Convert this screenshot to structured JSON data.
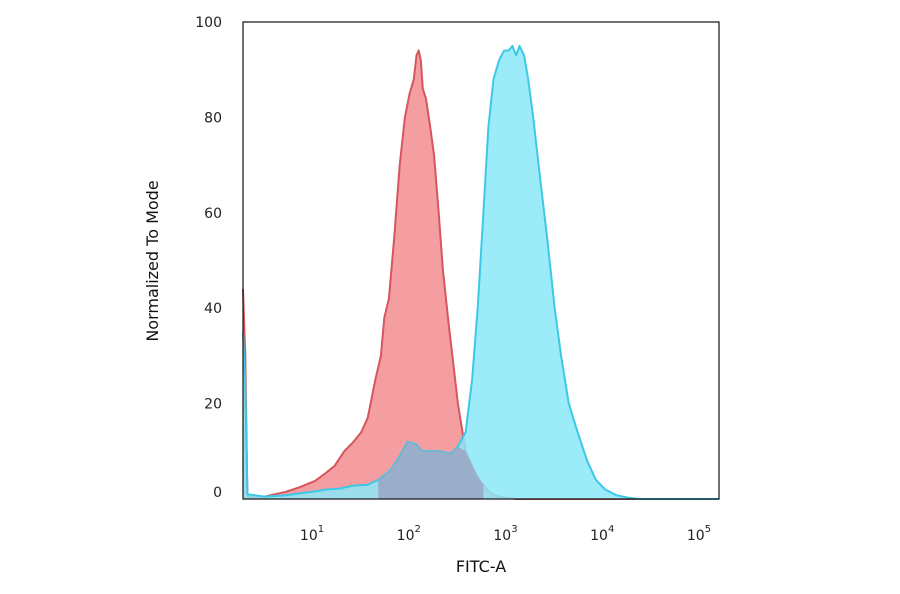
{
  "chart_data": {
    "type": "area",
    "xlabel": "FITC-A",
    "ylabel": "Normalized To Mode",
    "x_scale": "log",
    "xlim": [
      1.8,
      150000
    ],
    "ylim": [
      0,
      100
    ],
    "y_ticks": [
      0,
      20,
      40,
      60,
      80,
      100
    ],
    "x_ticks": [
      {
        "value": 10,
        "base": "10",
        "exp": "1"
      },
      {
        "value": 100,
        "base": "10",
        "exp": "2"
      },
      {
        "value": 1000,
        "base": "10",
        "exp": "3"
      },
      {
        "value": 10000,
        "base": "10",
        "exp": "4"
      },
      {
        "value": 100000,
        "base": "10",
        "exp": "5"
      }
    ],
    "grid": false,
    "legend": "none",
    "series": [
      {
        "color": "#f59ea2",
        "stroke": "#d5565c",
        "points": [
          [
            1.8,
            44
          ],
          [
            1.9,
            30
          ],
          [
            2.0,
            0.5
          ],
          [
            3,
            0.5
          ],
          [
            5,
            1.5
          ],
          [
            7,
            2.5
          ],
          [
            10,
            3.8
          ],
          [
            13,
            5.5
          ],
          [
            16,
            7
          ],
          [
            20,
            10
          ],
          [
            25,
            12
          ],
          [
            30,
            14
          ],
          [
            35,
            17
          ],
          [
            42,
            25
          ],
          [
            48,
            30
          ],
          [
            52,
            38
          ],
          [
            58,
            42
          ],
          [
            66,
            55
          ],
          [
            75,
            70
          ],
          [
            85,
            80
          ],
          [
            95,
            85
          ],
          [
            105,
            88
          ],
          [
            112,
            93
          ],
          [
            118,
            94
          ],
          [
            124,
            92
          ],
          [
            130,
            86
          ],
          [
            140,
            84
          ],
          [
            155,
            78
          ],
          [
            170,
            72
          ],
          [
            190,
            60
          ],
          [
            210,
            48
          ],
          [
            240,
            37
          ],
          [
            270,
            28
          ],
          [
            300,
            20
          ],
          [
            360,
            10
          ],
          [
            420,
            7
          ],
          [
            500,
            4
          ],
          [
            600,
            2
          ],
          [
            700,
            0.8
          ],
          [
            900,
            0.3
          ],
          [
            1200,
            0
          ],
          [
            150000,
            0
          ]
        ]
      },
      {
        "color": "#8be8f8",
        "stroke": "#3cc8e6",
        "points": [
          [
            1.8,
            35
          ],
          [
            1.9,
            24
          ],
          [
            2.0,
            1
          ],
          [
            3,
            0.5
          ],
          [
            5,
            0.8
          ],
          [
            7,
            1.2
          ],
          [
            10,
            1.6
          ],
          [
            13,
            2
          ],
          [
            18,
            2.2
          ],
          [
            25,
            2.8
          ],
          [
            35,
            3
          ],
          [
            45,
            4
          ],
          [
            60,
            6
          ],
          [
            75,
            9
          ],
          [
            90,
            12
          ],
          [
            110,
            11.5
          ],
          [
            130,
            10
          ],
          [
            160,
            10
          ],
          [
            200,
            10
          ],
          [
            250,
            9.5
          ],
          [
            300,
            11
          ],
          [
            360,
            14
          ],
          [
            420,
            25
          ],
          [
            480,
            40
          ],
          [
            550,
            60
          ],
          [
            620,
            78
          ],
          [
            700,
            88
          ],
          [
            800,
            92
          ],
          [
            900,
            94
          ],
          [
            1000,
            94
          ],
          [
            1100,
            95
          ],
          [
            1200,
            93
          ],
          [
            1300,
            95
          ],
          [
            1450,
            93
          ],
          [
            1600,
            88
          ],
          [
            1800,
            80
          ],
          [
            2100,
            68
          ],
          [
            2500,
            55
          ],
          [
            3000,
            40
          ],
          [
            3500,
            30
          ],
          [
            4200,
            20
          ],
          [
            5000,
            15
          ],
          [
            6500,
            8
          ],
          [
            8000,
            4
          ],
          [
            10000,
            2
          ],
          [
            13000,
            0.8
          ],
          [
            17000,
            0.3
          ],
          [
            22000,
            0
          ],
          [
            150000,
            0
          ]
        ]
      }
    ]
  }
}
